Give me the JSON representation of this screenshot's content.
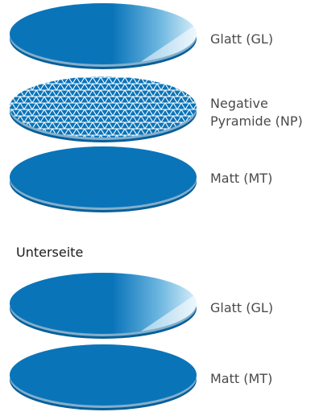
{
  "colors": {
    "disc_fill": "#0a74b9",
    "disc_edge": "#075f99",
    "highlight": "#bfe3f5",
    "text": "#4a4a4a"
  },
  "top_stack": {
    "discs": [
      {
        "label": "Glatt (GL)",
        "texture": "smooth"
      },
      {
        "label_line1": "Negative",
        "label_line2": "Pyramide (NP)",
        "texture": "pyramid-pattern"
      },
      {
        "label": "Matt (MT)",
        "texture": "matte"
      }
    ]
  },
  "bottom_section": {
    "heading": "Unterseite",
    "discs": [
      {
        "label": "Glatt (GL)",
        "texture": "smooth"
      },
      {
        "label": "Matt (MT)",
        "texture": "matte"
      }
    ]
  }
}
